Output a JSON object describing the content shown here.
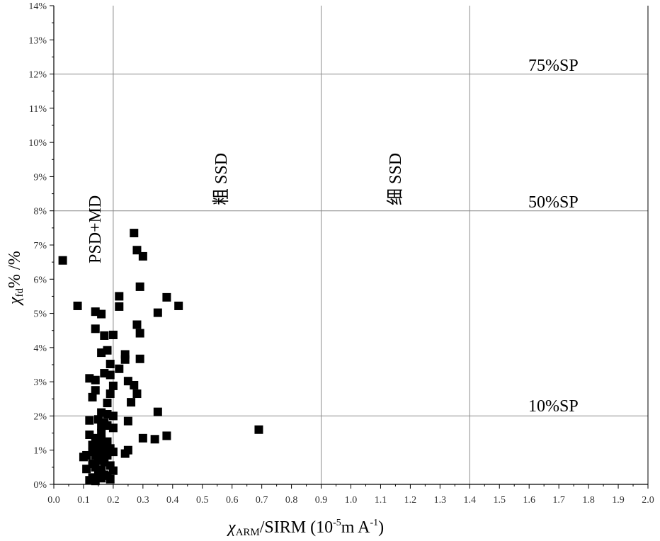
{
  "chart_data": {
    "type": "scatter",
    "xlim": [
      0,
      2.0
    ],
    "ylim": [
      0,
      14
    ],
    "x_ticks": [
      "0.0",
      "0.1",
      "0.2",
      "0.3",
      "0.4",
      "0.5",
      "0.6",
      "0.7",
      "0.8",
      "0.9",
      "1.0",
      "1.1",
      "1.2",
      "1.3",
      "1.4",
      "1.5",
      "1.6",
      "1.7",
      "1.8",
      "1.9",
      "2.0"
    ],
    "y_ticks": [
      "0%",
      "1%",
      "2%",
      "3%",
      "4%",
      "5%",
      "6%",
      "7%",
      "8%",
      "9%",
      "10%",
      "11%",
      "12%",
      "13%",
      "14%"
    ],
    "xlabel": {
      "chi": "χ",
      "sub": "ARM",
      "mid": "/SIRM (10",
      "sup1": "-5",
      "mid2": "m A",
      "sup2": "-1",
      "end": ")"
    },
    "ylabel": {
      "chi": "χ",
      "sub": "fd",
      "end": "% /%"
    },
    "region_lines": {
      "vertical_x": [
        0.2,
        0.9,
        1.4
      ],
      "horizontal_y": [
        2,
        8,
        12
      ]
    },
    "region_labels": {
      "psd_md": "PSD+MD",
      "coarse_ssd": "粗 SSD",
      "fine_ssd": "细 SSD",
      "sp75": "75%SP",
      "sp50": "50%SP",
      "sp10": "10%SP"
    },
    "marker_color": "#000000",
    "points": [
      [
        0.03,
        6.55
      ],
      [
        0.08,
        5.22
      ],
      [
        0.14,
        5.05
      ],
      [
        0.16,
        4.98
      ],
      [
        0.14,
        4.55
      ],
      [
        0.17,
        4.35
      ],
      [
        0.2,
        4.37
      ],
      [
        0.22,
        5.5
      ],
      [
        0.22,
        5.2
      ],
      [
        0.27,
        7.35
      ],
      [
        0.28,
        6.85
      ],
      [
        0.3,
        6.67
      ],
      [
        0.29,
        5.78
      ],
      [
        0.38,
        5.47
      ],
      [
        0.42,
        5.22
      ],
      [
        0.35,
        5.02
      ],
      [
        0.28,
        4.67
      ],
      [
        0.29,
        4.42
      ],
      [
        0.16,
        3.85
      ],
      [
        0.18,
        3.92
      ],
      [
        0.24,
        3.8
      ],
      [
        0.24,
        3.65
      ],
      [
        0.29,
        3.67
      ],
      [
        0.19,
        3.52
      ],
      [
        0.22,
        3.38
      ],
      [
        0.17,
        3.25
      ],
      [
        0.19,
        3.2
      ],
      [
        0.12,
        3.1
      ],
      [
        0.14,
        3.05
      ],
      [
        0.25,
        3.02
      ],
      [
        0.27,
        2.9
      ],
      [
        0.2,
        2.88
      ],
      [
        0.14,
        2.75
      ],
      [
        0.19,
        2.65
      ],
      [
        0.28,
        2.65
      ],
      [
        0.13,
        2.55
      ],
      [
        0.18,
        2.38
      ],
      [
        0.26,
        2.4
      ],
      [
        0.35,
        2.12
      ],
      [
        0.16,
        2.1
      ],
      [
        0.18,
        2.05
      ],
      [
        0.2,
        2.0
      ],
      [
        0.25,
        1.85
      ],
      [
        0.12,
        1.87
      ],
      [
        0.15,
        1.9
      ],
      [
        0.17,
        1.8
      ],
      [
        0.16,
        1.7
      ],
      [
        0.2,
        1.65
      ],
      [
        0.18,
        1.72
      ],
      [
        0.69,
        1.6
      ],
      [
        0.12,
        1.45
      ],
      [
        0.16,
        1.5
      ],
      [
        0.38,
        1.42
      ],
      [
        0.3,
        1.35
      ],
      [
        0.34,
        1.32
      ],
      [
        0.14,
        1.35
      ],
      [
        0.16,
        1.3
      ],
      [
        0.18,
        1.25
      ],
      [
        0.13,
        1.15
      ],
      [
        0.17,
        1.1
      ],
      [
        0.19,
        1.05
      ],
      [
        0.15,
        1.2
      ],
      [
        0.25,
        1.0
      ],
      [
        0.24,
        0.9
      ],
      [
        0.2,
        0.95
      ],
      [
        0.11,
        0.85
      ],
      [
        0.14,
        0.85
      ],
      [
        0.16,
        0.8
      ],
      [
        0.18,
        0.85
      ],
      [
        0.1,
        0.8
      ],
      [
        0.15,
        0.7
      ],
      [
        0.17,
        0.65
      ],
      [
        0.13,
        0.6
      ],
      [
        0.19,
        0.55
      ],
      [
        0.14,
        0.5
      ],
      [
        0.11,
        0.45
      ],
      [
        0.16,
        0.42
      ],
      [
        0.2,
        0.4
      ],
      [
        0.15,
        0.3
      ],
      [
        0.18,
        0.25
      ],
      [
        0.13,
        0.2
      ],
      [
        0.16,
        0.18
      ],
      [
        0.19,
        0.15
      ],
      [
        0.12,
        0.12
      ],
      [
        0.14,
        0.1
      ],
      [
        0.17,
        0.28
      ],
      [
        0.18,
        1.15
      ],
      [
        0.15,
        1.0
      ],
      [
        0.13,
        0.95
      ],
      [
        0.17,
        0.95
      ]
    ]
  }
}
